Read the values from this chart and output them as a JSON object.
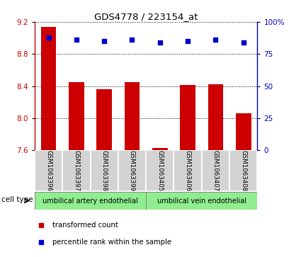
{
  "title": "GDS4778 / 223154_at",
  "samples": [
    "GSM1063396",
    "GSM1063397",
    "GSM1063398",
    "GSM1063399",
    "GSM1063405",
    "GSM1063406",
    "GSM1063407",
    "GSM1063408"
  ],
  "transformed_counts": [
    9.14,
    8.45,
    8.36,
    8.45,
    7.63,
    8.41,
    8.42,
    8.06
  ],
  "percentile_ranks": [
    88,
    86,
    85,
    86,
    84,
    85,
    86,
    84
  ],
  "ylim_left": [
    7.6,
    9.2
  ],
  "ylim_right": [
    0,
    100
  ],
  "yticks_left": [
    7.6,
    8.0,
    8.4,
    8.8,
    9.2
  ],
  "yticks_right": [
    0,
    25,
    50,
    75,
    100
  ],
  "ytick_labels_right": [
    "0",
    "25",
    "50",
    "75",
    "100%"
  ],
  "bar_color": "#cc0000",
  "dot_color": "#0000cc",
  "cell_types": [
    {
      "label": "umbilical artery endothelial",
      "start": 0,
      "end": 4
    },
    {
      "label": "umbilical vein endothelial",
      "start": 4,
      "end": 8
    }
  ],
  "cell_type_label": "cell type",
  "cell_type_color": "#90ee90",
  "legend_items": [
    {
      "label": "transformed count",
      "color": "#cc0000"
    },
    {
      "label": "percentile rank within the sample",
      "color": "#0000cc"
    }
  ],
  "sample_bg_color": "#d3d3d3"
}
